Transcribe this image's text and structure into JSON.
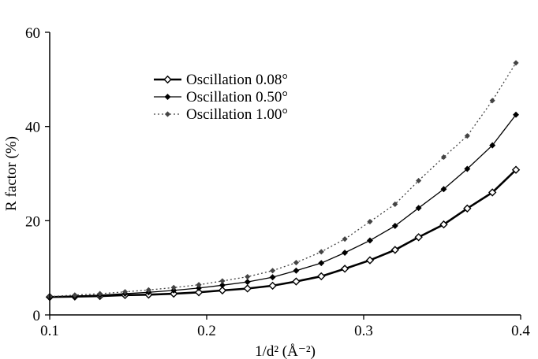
{
  "chart_data": {
    "type": "line",
    "title": "",
    "xlabel": "1/d² (Å⁻²)",
    "ylabel": "R factor (%)",
    "xlim": [
      0.1,
      0.4
    ],
    "ylim": [
      0,
      60
    ],
    "xticks": [
      "0.1",
      "0.2",
      "0.3",
      "0.4"
    ],
    "yticks": [
      "0",
      "20",
      "40",
      "60"
    ],
    "grid": false,
    "legend_position": "upper-left",
    "x": [
      0.1,
      0.116,
      0.132,
      0.148,
      0.163,
      0.179,
      0.195,
      0.21,
      0.226,
      0.242,
      0.257,
      0.273,
      0.288,
      0.304,
      0.32,
      0.335,
      0.351,
      0.366,
      0.382,
      0.397
    ],
    "series": [
      {
        "name": "Oscillation 0.08°",
        "style": "solid-thick-open-diamond",
        "color": "#000000",
        "values": [
          3.8,
          3.9,
          4.0,
          4.2,
          4.3,
          4.5,
          4.8,
          5.2,
          5.6,
          6.2,
          7.1,
          8.2,
          9.8,
          11.6,
          13.8,
          16.5,
          19.2,
          22.6,
          26.0,
          30.8
        ]
      },
      {
        "name": "Oscillation 0.50°",
        "style": "solid-thin-filled-diamond",
        "color": "#000000",
        "values": [
          3.8,
          4.0,
          4.2,
          4.5,
          4.8,
          5.2,
          5.7,
          6.3,
          7.0,
          8.0,
          9.4,
          11.0,
          13.2,
          15.8,
          18.9,
          22.7,
          26.7,
          31.0,
          36.0,
          42.5
        ]
      },
      {
        "name": "Oscillation 1.00°",
        "style": "dotted-gray-diamond",
        "color": "#444444",
        "values": [
          3.9,
          4.2,
          4.5,
          4.9,
          5.3,
          5.8,
          6.4,
          7.2,
          8.1,
          9.4,
          11.1,
          13.4,
          16.1,
          19.8,
          23.5,
          28.5,
          33.5,
          38.0,
          45.5,
          53.5
        ]
      }
    ]
  }
}
